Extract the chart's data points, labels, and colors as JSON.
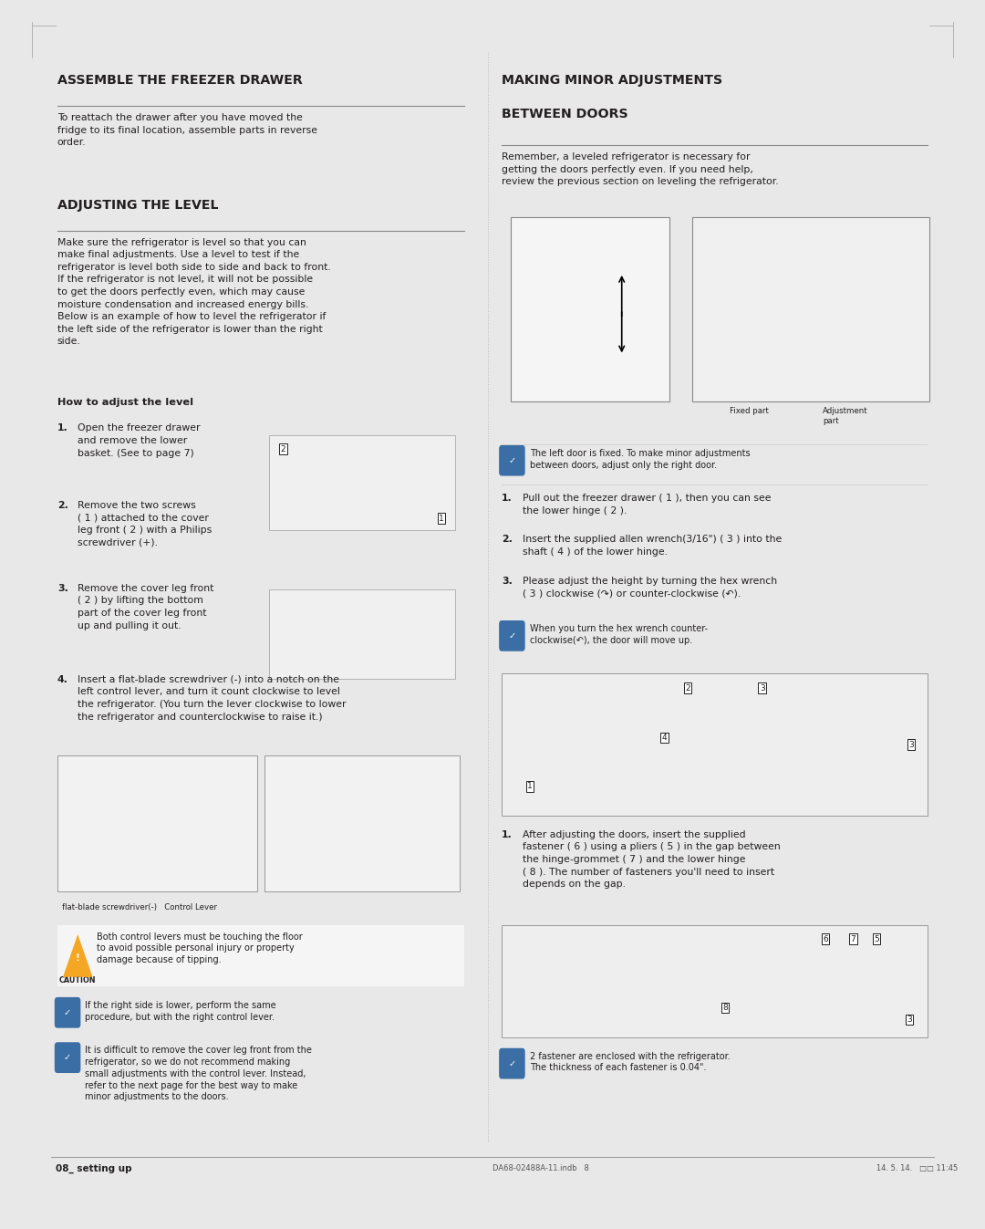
{
  "bg_color": "#e8e8e8",
  "page_bg": "#ffffff",
  "title_left_1": "ASSEMBLE THE FREEZER DRAWER",
  "title_right_1": "MAKING MINOR ADJUSTMENTS",
  "title_right_2": "BETWEEN DOORS",
  "section2_title": "ADJUSTING THE LEVEL",
  "body_left_1": "To reattach the drawer after you have moved the\nfridge to its final location, assemble parts in reverse\norder.",
  "body_left_2": "Make sure the refrigerator is level so that you can\nmake final adjustments. Use a level to test if the\nrefrigerator is level both side to side and back to front.\nIf the refrigerator is not level, it will not be possible\nto get the doors perfectly even, which may cause\nmoisture condensation and increased energy bills.\nBelow is an example of how to level the refrigerator if\nthe left side of the refrigerator is lower than the right\nside.",
  "how_to_title": "How to adjust the level",
  "step1": "Open the freezer drawer\nand remove the lower\nbasket. (See to page 7)",
  "step2": "Remove the two screws\n( 1 ) attached to the cover\nleg front ( 2 ) with a Philips\nscrewdriver (+).",
  "step3": "Remove the cover leg front\n( 2 ) by lifting the bottom\npart of the cover leg front\nup and pulling it out.",
  "step4": "Insert a flat-blade screwdriver (-) into a notch on the\nleft control lever, and turn it count clockwise to level\nthe refrigerator. (You turn the lever clockwise to lower\nthe refrigerator and counterclockwise to raise it.)",
  "caution_text": "Both control levers must be touching the floor\nto avoid possible personal injury or property\ndamage because of tipping.",
  "note1": "If the right side is lower, perform the same\nprocedure, but with the right control lever.",
  "note2": "It is difficult to remove the cover leg front from the\nrefrigerator, so we do not recommend making\nsmall adjustments with the control lever. Instead,\nrefer to the next page for the best way to make\nminor adjustments to the doors.",
  "screwdriver_label1": "flat-blade screwdriver(-)   Control Lever",
  "right_body": "Remember, a leveled refrigerator is necessary for\ngetting the doors perfectly even. If you need help,\nreview the previous section on leveling the refrigerator.",
  "right_note1": "The left door is fixed. To make minor adjustments\nbetween doors, adjust only the right door.",
  "right_step1": "Pull out the freezer drawer ( 1 ), then you can see\nthe lower hinge ( 2 ).",
  "right_step2": "Insert the supplied allen wrench(3/16\") ( 3 ) into the\nshaft ( 4 ) of the lower hinge.",
  "right_step3": "Please adjust the height by turning the hex wrench\n( 3 ) clockwise (↷) or counter-clockwise (↶).",
  "right_note2": "When you turn the hex wrench counter-\nclockwise(↶), the door will move up.",
  "right_step_last": "After adjusting the doors, insert the supplied\nfastener ( 6 ) using a pliers ( 5 ) in the gap between\nthe hinge-grommet ( 7 ) and the lower hinge\n( 8 ). The number of fasteners you'll need to insert\ndepends on the gap.",
  "right_note3": "2 fastener are enclosed with the refrigerator.\nThe thickness of each fastener is 0.04\".",
  "footer_left": "08_ setting up",
  "footer_right": "DA68-02488A-11.indb   8                                                                                                                        14. 5. 14.   □□ 11:45",
  "text_color": "#231f20",
  "divider_color": "#888888",
  "note_icon_color": "#3a6ea5",
  "caution_color": "#f5a623"
}
